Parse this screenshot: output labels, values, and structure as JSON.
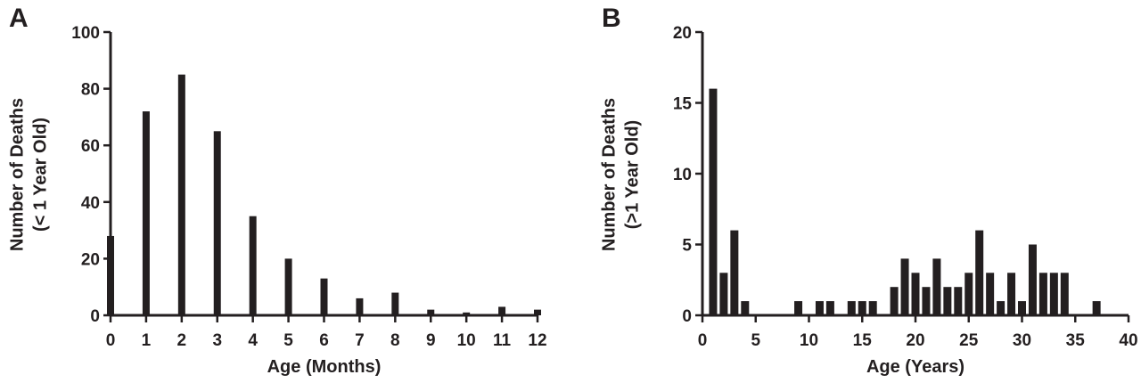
{
  "chart_data": [
    {
      "type": "bar",
      "panel": "A",
      "xlabel": "Age (Months)",
      "ylabel_lines": [
        "Number of Deaths",
        "(< 1 Year Old)"
      ],
      "xlim": [
        0,
        12
      ],
      "ylim": [
        0,
        100
      ],
      "x_ticks": [
        0,
        1,
        2,
        3,
        4,
        5,
        6,
        7,
        8,
        9,
        10,
        11,
        12
      ],
      "y_ticks": [
        0,
        20,
        40,
        60,
        80,
        100
      ],
      "x": [
        0,
        1,
        2,
        3,
        4,
        5,
        6,
        7,
        8,
        9,
        10,
        11,
        12
      ],
      "values": [
        28,
        72,
        85,
        65,
        35,
        20,
        13,
        6,
        8,
        2,
        1,
        3,
        2
      ],
      "grid": false,
      "color": "#231f20"
    },
    {
      "type": "bar",
      "panel": "B",
      "xlabel": "Age (Years)",
      "ylabel_lines": [
        "Number of Deaths",
        "(>1 Year Old)"
      ],
      "xlim": [
        0,
        40
      ],
      "ylim": [
        0,
        20
      ],
      "x_ticks": [
        0,
        5,
        10,
        15,
        20,
        25,
        30,
        35,
        40
      ],
      "y_ticks": [
        0,
        5,
        10,
        15,
        20
      ],
      "x": [
        1,
        2,
        3,
        4,
        9,
        11,
        12,
        14,
        15,
        16,
        18,
        19,
        20,
        21,
        22,
        23,
        24,
        25,
        26,
        27,
        28,
        29,
        30,
        31,
        32,
        33,
        34,
        37
      ],
      "values": [
        16,
        3,
        6,
        1,
        1,
        1,
        1,
        1,
        1,
        1,
        2,
        4,
        3,
        2,
        4,
        2,
        2,
        3,
        6,
        3,
        1,
        3,
        1,
        5,
        3,
        3,
        3,
        1
      ],
      "grid": false,
      "color": "#231f20"
    }
  ]
}
